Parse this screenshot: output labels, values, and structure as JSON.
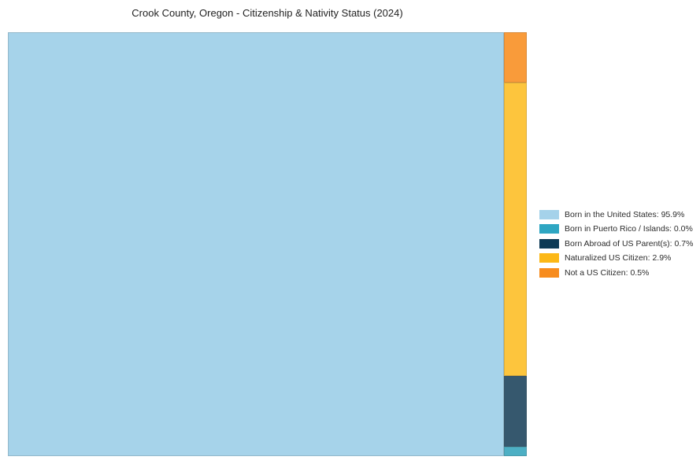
{
  "title": "Crook County, Oregon - Citizenship & Nativity Status (2024)",
  "chart_data": {
    "type": "treemap",
    "title": "Crook County, Oregon - Citizenship & Nativity Status (2024)",
    "categories": [
      "Born in the United States",
      "Born in Puerto Rico / Islands",
      "Born Abroad of US Parent(s)",
      "Naturalized US Citizen",
      "Not a US Citizen"
    ],
    "values": [
      95.9,
      0.0,
      0.7,
      2.9,
      0.5
    ],
    "unit": "%",
    "legend_position": "right",
    "layout_note": "single large block left; right column top-to-bottom: Not a US Citizen, Naturalized US Citizen, Born Abroad of US Parent(s), Born in Puerto Rico / Islands"
  },
  "segments": [
    {
      "id": "born-us",
      "label": "Born in the United States: 95.9%",
      "value": 95.9,
      "chart_color": "#A6D3EA",
      "legend_color": "#A5D2EA"
    },
    {
      "id": "born-pr",
      "label": "Born in Puerto Rico / Islands: 0.0%",
      "value": 0.0,
      "chart_color": "#4DAFC4",
      "legend_color": "#2EA6C2"
    },
    {
      "id": "born-abroad",
      "label": "Born Abroad of US Parent(s): 0.7%",
      "value": 0.7,
      "chart_color": "#36586E",
      "legend_color": "#0D3A55"
    },
    {
      "id": "naturalized",
      "label": "Naturalized US Citizen: 2.9%",
      "value": 2.9,
      "chart_color": "#FDC53D",
      "legend_color": "#FCB817"
    },
    {
      "id": "not-citizen",
      "label": "Not a US Citizen: 0.5%",
      "value": 0.5,
      "chart_color": "#F99B3A",
      "legend_color": "#F78C1E"
    }
  ]
}
